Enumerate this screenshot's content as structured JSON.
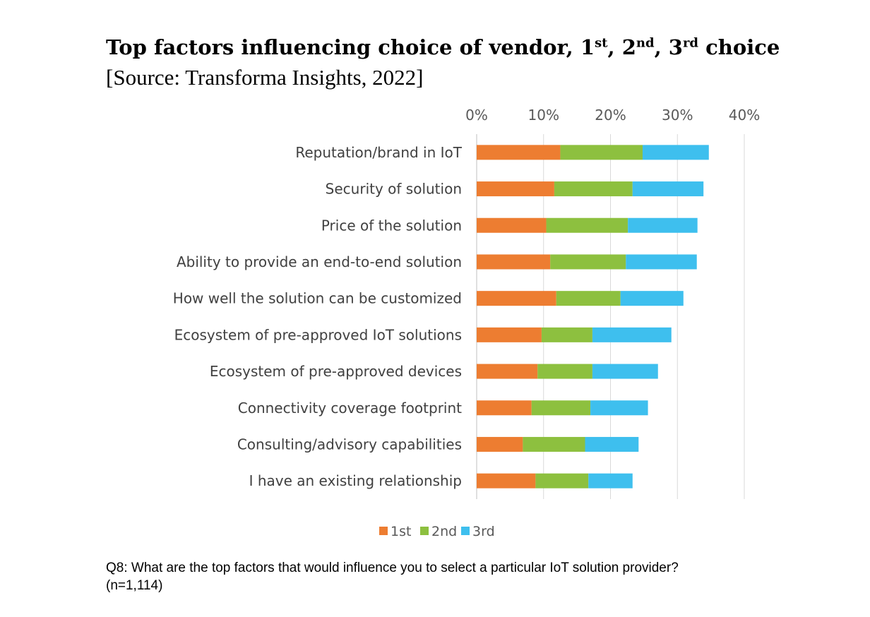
{
  "title": {
    "parts": [
      {
        "text": "Top factors influencing choice of vendor, 1",
        "sup": false
      },
      {
        "text": "st",
        "sup": true
      },
      {
        "text": ", 2",
        "sup": false
      },
      {
        "text": "nd",
        "sup": true
      },
      {
        "text": ", 3",
        "sup": false
      },
      {
        "text": "rd",
        "sup": true
      },
      {
        "text": " choice",
        "sup": false
      }
    ]
  },
  "subtitle": "[Source: Transforma Insights, 2022]",
  "footnote": {
    "line1": "Q8: What are the top factors that would influence you to select a particular IoT solution provider?",
    "line2": "(n=1,114)"
  },
  "chart_data": {
    "type": "bar",
    "orientation": "horizontal",
    "stacked": true,
    "xlim": [
      0,
      40
    ],
    "x_ticks": [
      "0%",
      "10%",
      "20%",
      "30%",
      "40%"
    ],
    "x_tick_values": [
      0,
      10,
      20,
      30,
      40
    ],
    "x_axis_position": "top",
    "grid": true,
    "legend_position": "bottom",
    "categories": [
      "Reputation/brand in IoT",
      "Security of solution",
      "Price of the solution",
      "Ability to provide an end-to-end solution",
      "How well the solution can be customized",
      "Ecosystem of pre-approved IoT solutions",
      "Ecosystem of pre-approved devices",
      "Connectivity coverage footprint",
      "Consulting/advisory capabilities",
      "I have an existing relationship"
    ],
    "series": [
      {
        "name": "1st",
        "color": "#ED7D31",
        "values": [
          12.5,
          11.6,
          10.4,
          11.0,
          11.9,
          9.7,
          9.1,
          8.2,
          6.9,
          8.8
        ]
      },
      {
        "name": "2nd",
        "color": "#8DC03F",
        "values": [
          12.3,
          11.7,
          12.2,
          11.3,
          9.6,
          7.6,
          8.2,
          8.8,
          9.3,
          7.9
        ]
      },
      {
        "name": "3rd",
        "color": "#3EBFEE",
        "values": [
          9.9,
          10.6,
          10.4,
          10.6,
          9.4,
          11.8,
          9.8,
          8.6,
          8.0,
          6.6
        ]
      }
    ]
  }
}
